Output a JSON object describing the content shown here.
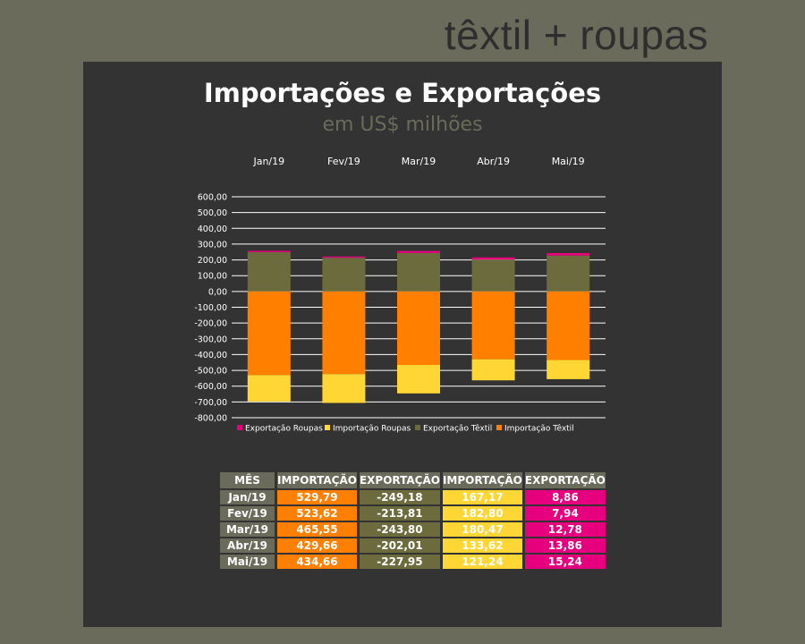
{
  "brand": "têxtil + roupas",
  "chart_data": {
    "type": "bar",
    "stacked": true,
    "title": "Importações e Exportações",
    "subtitle": "em US$ milhões",
    "categories": [
      "Jan/19",
      "Fev/19",
      "Mar/19",
      "Abr/19",
      "Mai/19"
    ],
    "yticks": [
      "600,00",
      "500,00",
      "400,00",
      "300,00",
      "200,00",
      "100,00",
      "0,00",
      "-100,00",
      "-200,00",
      "-300,00",
      "-400,00",
      "-500,00",
      "-600,00",
      "-700,00",
      "-800,00"
    ],
    "ylim": [
      -800,
      600
    ],
    "grid": true,
    "legend_position": "bottom",
    "series": [
      {
        "name": "Exportação Roupas",
        "color": "#e6007e",
        "values": [
          8.86,
          7.94,
          12.78,
          13.86,
          15.24
        ]
      },
      {
        "name": "Importação Roupas",
        "color": "#ffd633",
        "values": [
          -167.17,
          -182.8,
          -180.47,
          -133.62,
          -121.24
        ]
      },
      {
        "name": "Exportação Têxtil",
        "color": "#6b6b3e",
        "values": [
          249.18,
          213.81,
          243.8,
          202.01,
          227.95
        ]
      },
      {
        "name": "Importação Têxtil",
        "color": "#ff8000",
        "values": [
          -529.79,
          -523.62,
          -465.55,
          -429.66,
          -434.66
        ]
      }
    ]
  },
  "table": {
    "headers": [
      "MÊS",
      "IMPORTAÇÃO",
      "EXPORTAÇÃO",
      "IMPORTAÇÃO",
      "EXPORTAÇÃO"
    ],
    "rows": [
      [
        "Jan/19",
        "529,79",
        "-249,18",
        "167,17",
        "8,86"
      ],
      [
        "Fev/19",
        "523,62",
        "-213,81",
        "182,80",
        "7,94"
      ],
      [
        "Mar/19",
        "465,55",
        "-243,80",
        "180,47",
        "12,78"
      ],
      [
        "Abr/19",
        "429,66",
        "-202,01",
        "133,62",
        "13,86"
      ],
      [
        "Mai/19",
        "434,66",
        "-227,95",
        "121,24",
        "15,24"
      ]
    ]
  }
}
